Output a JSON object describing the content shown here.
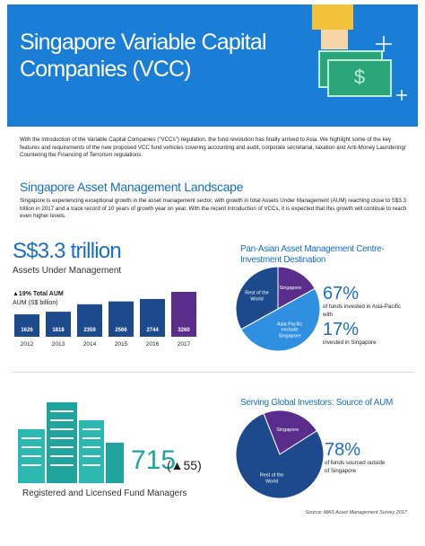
{
  "header": {
    "title": "Singapore Variable Capital Companies (VCC)"
  },
  "intro": "With the introduction of the Variable Capital Companies (\"VCCs\") regulation, the fund revolution has finally arrived to Asia. We highlight some of the key features and requirements of the new proposed VCC fund vehicles covering accounting and audit, corporate secretarial, taxation and Anti-Money Laundering/ Countering the Financing of Terrorism regulations.",
  "landscape": {
    "title": "Singapore Asset Management Landscape",
    "text": "Singapore is experiencing exceptional growth in the asset management sector, with growth in total Assets Under Management (AUM) reaching close to S$3.3 trillion in 2017 and a track record of 10 years of growth year on year. With the recent introduction of VCCs, it is expected that this growth will continue to reach even higher levels."
  },
  "aum": {
    "headline": "S$3.3 trillion",
    "caption": "Assets Under Management",
    "growth": "▲19% Total AUM"
  },
  "fund_managers": {
    "count": "715",
    "change": "(▲55)",
    "caption": "Registered and Licensed Fund Managers"
  },
  "investment": {
    "title": "Pan-Asian Asset Management Centre- Investment Destination",
    "stat1": "67%",
    "stat1_text": "of funds invested in Asia-Pacific with",
    "stat2": "17%",
    "stat2_text": "invested in Singapore"
  },
  "source_of_aum": {
    "title": "Serving Global Investors: Source of AUM",
    "stat": "78%",
    "stat_text": "of funds sourced outside of Singapore"
  },
  "source": "Source: MAS Asset Management Survey 2017",
  "chart_data": [
    {
      "type": "bar",
      "title": "AUM (S$ billion)",
      "categories": [
        "2012",
        "2013",
        "2014",
        "2015",
        "2016",
        "2017"
      ],
      "values": [
        1626,
        1818,
        2359,
        2566,
        2744,
        3260
      ],
      "colors": [
        "#1d4a8c",
        "#1d4a8c",
        "#1d4a8c",
        "#1d4a8c",
        "#1d4a8c",
        "#5a2d8c"
      ]
    },
    {
      "type": "pie",
      "categories": [
        "Singapore",
        "Asia Pacific exclude Singapore",
        "Rest of the World"
      ],
      "values": [
        17,
        50,
        33
      ],
      "colors": [
        "#5a2d8c",
        "#2f8fe0",
        "#1d4a8c"
      ]
    },
    {
      "type": "pie",
      "categories": [
        "Singapore",
        "Rest of the World"
      ],
      "values": [
        22,
        78
      ],
      "colors": [
        "#5a2d8c",
        "#1d4a8c"
      ]
    }
  ]
}
